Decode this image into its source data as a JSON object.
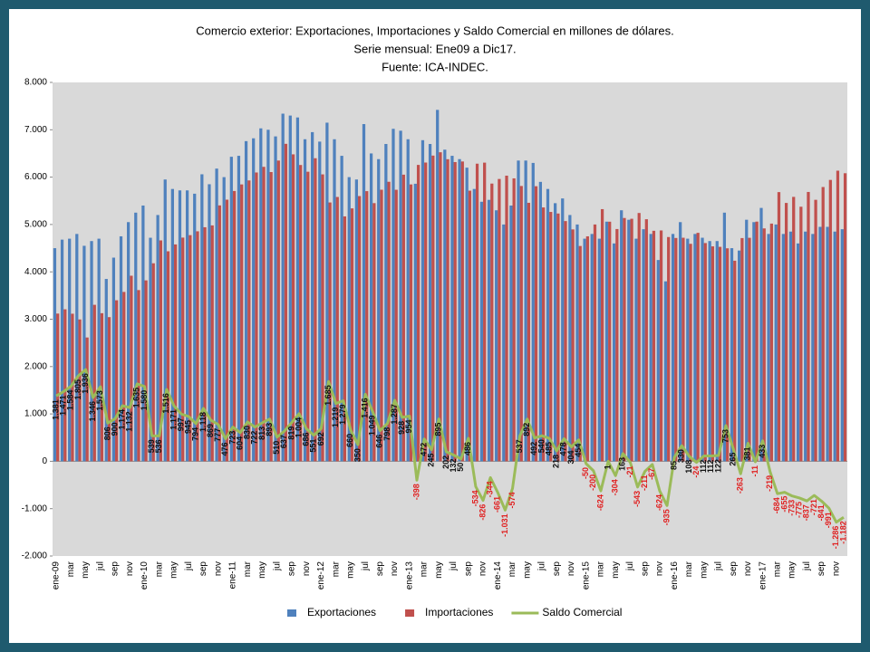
{
  "chart_data": {
    "type": "bar_line",
    "title": [
      "Comercio exterior: Exportaciones, Importaciones y Saldo Comercial en millones de dólares.",
      "Serie mensual: Ene09 a Dic17.",
      "Fuente: ICA-INDEC."
    ],
    "categories": [
      "ene-09",
      null,
      "mar",
      null,
      "may",
      null,
      "jul",
      null,
      "sep",
      null,
      "nov",
      null,
      "ene-10",
      null,
      "mar",
      null,
      "may",
      null,
      "jul",
      null,
      "sep",
      null,
      "nov",
      null,
      "ene-11",
      null,
      "mar",
      null,
      "may",
      null,
      "jul",
      null,
      "sep",
      null,
      "nov",
      null,
      "ene-12",
      null,
      "mar",
      null,
      "may",
      null,
      "jul",
      null,
      "sep",
      null,
      "nov",
      null,
      "ene-13",
      null,
      "mar",
      null,
      "may",
      null,
      "jul",
      null,
      "sep",
      null,
      "nov",
      null,
      "ene-14",
      null,
      "mar",
      null,
      "may",
      null,
      "jul",
      null,
      "sep",
      null,
      "nov",
      null,
      "ene-15",
      null,
      "mar",
      null,
      "may",
      null,
      "jul",
      null,
      "sep",
      null,
      "nov",
      null,
      "ene-16",
      null,
      "mar",
      null,
      "may",
      null,
      "jul",
      null,
      "sep",
      null,
      "nov",
      null,
      "ene-17",
      null,
      "mar",
      null,
      "may",
      null,
      "jul",
      null,
      "sep",
      null,
      "nov",
      null
    ],
    "series": [
      {
        "name": "Exportaciones",
        "color": "#4f81bd",
        "kind": "bar",
        "values": [
          4500,
          4680,
          4700,
          4800,
          4550,
          4650,
          4700,
          3850,
          4300,
          4750,
          5050,
          5250,
          5400,
          4720,
          5200,
          5950,
          5750,
          5720,
          5720,
          5650,
          6060,
          5850,
          6180,
          6000,
          6430,
          6450,
          6760,
          6820,
          7030,
          7000,
          6860,
          7340,
          7300,
          7260,
          6800,
          6950,
          6750,
          7150,
          6800,
          6450,
          6000,
          5950,
          7120,
          6500,
          6380,
          6700,
          7020,
          6980,
          6800,
          5860,
          6780,
          6700,
          7420,
          6580,
          6450,
          6380,
          6200,
          5750,
          5480,
          5520,
          5300,
          5000,
          5400,
          6350,
          6350,
          6300,
          5900,
          5750,
          5450,
          5550,
          5200,
          5000,
          4700,
          4800,
          4700,
          5060,
          4600,
          5300,
          5100,
          4700,
          4900,
          4800,
          4250,
          3800,
          4800,
          5050,
          4700,
          4800,
          4720,
          4650,
          4650,
          5250,
          4500,
          4450,
          5100,
          5050,
          5350,
          4800,
          5000,
          4800,
          4850,
          4600,
          4850,
          4800,
          4950,
          4950,
          4850,
          4900
        ]
      },
      {
        "name": "Importaciones",
        "color": "#c0504d",
        "kind": "bar",
        "values": [
          3119,
          3209,
          3116,
          2995,
          2614,
          3304,
          3127,
          3044,
          3400,
          3576,
          3918,
          3615,
          3820,
          4181,
          4664,
          4434,
          4579,
          4723,
          4775,
          4856,
          4942,
          4981,
          5403,
          5524,
          5707,
          5846,
          5930,
          6098,
          6217,
          6107,
          6350,
          6703,
          6481,
          6256,
          6114,
          6399,
          6058,
          5465,
          5581,
          5171,
          5340,
          5600,
          5704,
          5451,
          5734,
          5902,
          5733,
          6052,
          5846,
          6258,
          6308,
          6455,
          6525,
          6378,
          6318,
          6330,
          5714,
          6284,
          6306,
          5864,
          5961,
          6031,
          5974,
          5813,
          5458,
          5808,
          5360,
          5265,
          5232,
          5072,
          4896,
          4546,
          4750,
          5000,
          5324,
          5059,
          4904,
          5137,
          5121,
          5243,
          5111,
          4867,
          4874,
          4735,
          4715,
          4720,
          4592,
          4824,
          4608,
          4538,
          4528,
          4497,
          4235,
          4713,
          4719,
          5061,
          4917,
          5019,
          5684,
          5455,
          5583,
          5375,
          5687,
          5521,
          5791,
          5941,
          6136,
          6082
        ]
      },
      {
        "name": "Saldo Comercial",
        "color": "#9bbb59",
        "kind": "line",
        "values": [
          1381,
          1471,
          1584,
          1805,
          1936,
          1346,
          1573,
          806,
          900,
          1174,
          1132,
          1635,
          1580,
          539,
          536,
          1516,
          1171,
          997,
          945,
          794,
          1118,
          869,
          777,
          476,
          723,
          604,
          830,
          722,
          813,
          893,
          510,
          637,
          819,
          1004,
          686,
          551,
          692,
          1685,
          1219,
          1279,
          660,
          350,
          1416,
          1049,
          646,
          798,
          1287,
          928,
          954,
          -398,
          472,
          245,
          895,
          202,
          132,
          50,
          486,
          -534,
          -826,
          -344,
          -661,
          -1031,
          -574,
          537,
          892,
          492,
          540,
          485,
          218,
          478,
          304,
          454,
          -50,
          -200,
          -624,
          1,
          -304,
          163,
          -21,
          -543,
          -211,
          -67,
          -624,
          -935,
          85,
          330,
          108,
          -24,
          112,
          112,
          122,
          753,
          265,
          -263,
          381,
          -11,
          433,
          -219,
          -684,
          -655,
          -733,
          -775,
          -837,
          -721,
          -841,
          -991,
          -1286,
          -1182
        ],
        "value_labels": [
          "1.381",
          "1.471",
          "1.584",
          "1.805",
          "1.936",
          "1.346",
          "1.573",
          "806",
          "900",
          "1.174",
          "1.132",
          "1.635",
          "1.580",
          "539",
          "536",
          "1.516",
          "1.171",
          "997",
          "945",
          "794",
          "1.118",
          "869",
          "777",
          "476",
          "723",
          "604",
          "830",
          "722",
          "813",
          "893",
          "510",
          "637",
          "819",
          "1.004",
          "686",
          "551",
          "692",
          "1.685",
          "1.219",
          "1.279",
          "660",
          "350",
          "1.416",
          "1.049",
          "646",
          "798",
          "1.287",
          "928",
          "954",
          "-398",
          "472",
          "245",
          "895",
          "202",
          "132",
          "50",
          "486",
          "-534",
          "-826",
          "-344",
          "-661",
          "-1.031",
          "-574",
          "537",
          "892",
          "492",
          "540",
          "485",
          "218",
          "478",
          "304",
          "454",
          "-50",
          "-200",
          "-624",
          "1",
          "-304",
          "163",
          "-21",
          "-543",
          "-211",
          "-67",
          "-624",
          "-935",
          "85",
          "330",
          "108",
          "-24",
          "112",
          "112",
          "122",
          "753",
          "265",
          "-263",
          "381",
          "-11",
          "433",
          "-219",
          "-684",
          "-655",
          "-733",
          "-775",
          "-837",
          "-721",
          "-841",
          "-991",
          "-1.286",
          "-1.182"
        ]
      }
    ],
    "ylim": [
      -2000,
      8000
    ],
    "yticks": [
      {
        "value": -2000,
        "label": "-2.000"
      },
      {
        "value": -1000,
        "label": "-1.000"
      },
      0,
      {
        "value": 1000,
        "label": "1.000"
      },
      {
        "value": 2000,
        "label": "2.000"
      },
      {
        "value": 3000,
        "label": "3.000"
      },
      {
        "value": 4000,
        "label": "4.000"
      },
      {
        "value": 5000,
        "label": "5.000"
      },
      {
        "value": 6000,
        "label": "6.000"
      },
      {
        "value": 7000,
        "label": "7.000"
      },
      {
        "value": 8000,
        "label": "8.000"
      }
    ],
    "grid": false,
    "legend": "bottom"
  }
}
